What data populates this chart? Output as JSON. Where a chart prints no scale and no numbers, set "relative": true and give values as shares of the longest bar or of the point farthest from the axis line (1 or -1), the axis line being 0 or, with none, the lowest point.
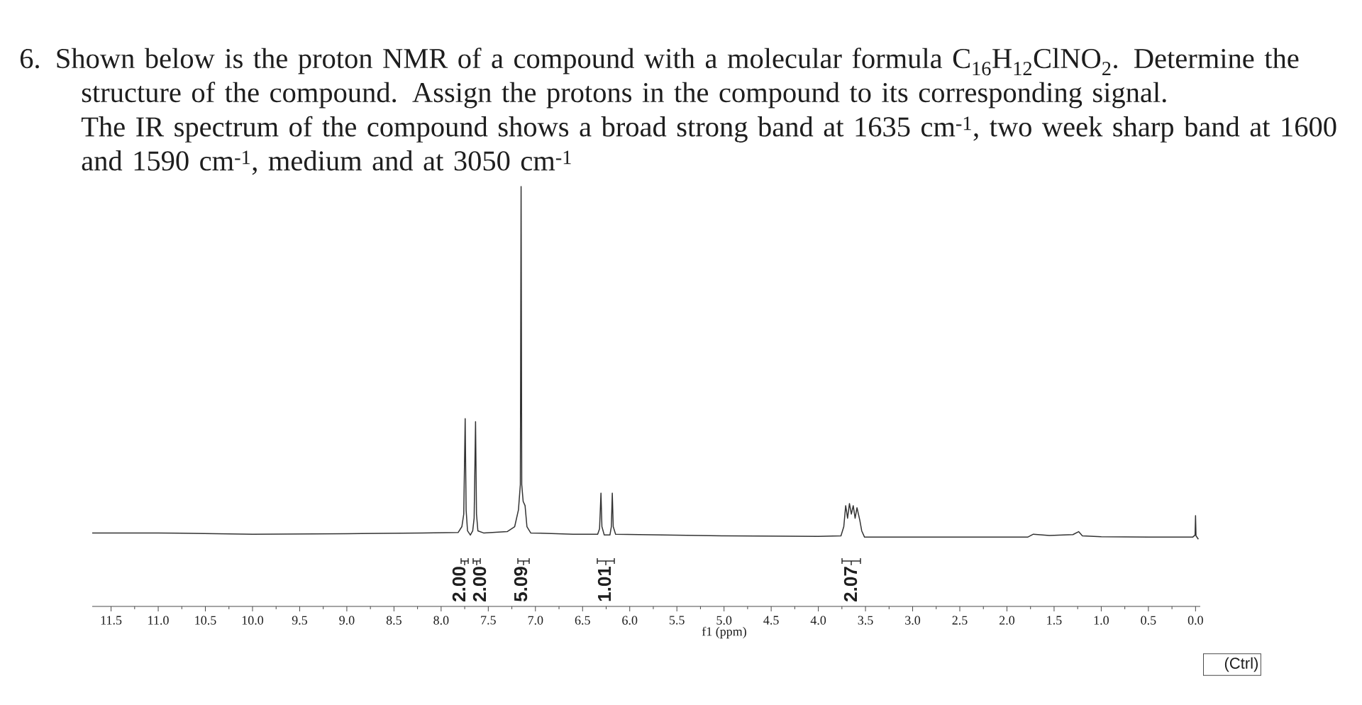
{
  "chart_data": {
    "type": "line",
    "relative": true,
    "title": "6. Shown below is the proton NMR of a compound with a molecular formula C$_{16}$H$_{12}$ClNO$_{2}$. Determine the structure of the compound. Assign the protons in the compound to its corresponding signal.",
    "subtitle": "The IR spectrum of the compound shows a broad strong band at 1635 cm$^{-1}$, two week sharp band at 1600 and 1590 cm$^{-1}$, medium and at 3050 cm$^{-1}$",
    "xlabel": "f1 (ppm)",
    "color": "#333333",
    "xlim": [
      11.7,
      -0.05
    ],
    "xticks": [
      11.5,
      {
        "value": 11,
        "label": "11.0"
      },
      10.5,
      {
        "value": 10,
        "label": "10.0"
      },
      9.5,
      {
        "value": 9,
        "label": "9.0"
      },
      8.5,
      {
        "value": 8,
        "label": "8.0"
      },
      7.5,
      {
        "value": 7,
        "label": "7.0"
      },
      6.5,
      {
        "value": 6,
        "label": "6.0"
      },
      5.5,
      {
        "value": 5,
        "label": "5.0"
      },
      4.5,
      {
        "value": 4,
        "label": "4.0"
      },
      3.5,
      {
        "value": 3,
        "label": "3.0"
      },
      2.5,
      {
        "value": 2,
        "label": "2.0"
      },
      1.5,
      {
        "value": 1,
        "label": "1.0"
      },
      0.5,
      {
        "value": 0,
        "label": "0.0"
      }
    ],
    "x": [
      11.7,
      11.0,
      10.0,
      9.0,
      8.2,
      7.82,
      7.78,
      7.76,
      7.745,
      7.735,
      7.72,
      7.69,
      7.665,
      7.65,
      7.635,
      7.625,
      7.61,
      7.55,
      7.3,
      7.22,
      7.18,
      7.16,
      7.152,
      7.145,
      7.13,
      7.11,
      7.09,
      7.05,
      6.6,
      6.34,
      6.32,
      6.305,
      6.295,
      6.27,
      6.21,
      6.195,
      6.185,
      6.175,
      6.15,
      5.0,
      4.0,
      3.76,
      3.73,
      3.71,
      3.69,
      3.67,
      3.65,
      3.63,
      3.61,
      3.59,
      3.56,
      3.54,
      3.51,
      2.5,
      1.78,
      1.72,
      1.55,
      1.3,
      1.24,
      1.2,
      1.0,
      0.5,
      0.03,
      0.005,
      0.0,
      -0.005,
      -0.03
    ],
    "values": [
      0.175,
      0.175,
      0.172,
      0.173,
      0.175,
      0.176,
      0.19,
      0.22,
      0.447,
      0.23,
      0.18,
      0.17,
      0.18,
      0.21,
      0.44,
      0.22,
      0.18,
      0.175,
      0.178,
      0.19,
      0.23,
      0.29,
      1.0,
      0.29,
      0.25,
      0.24,
      0.19,
      0.175,
      0.172,
      0.172,
      0.185,
      0.27,
      0.19,
      0.17,
      0.17,
      0.19,
      0.27,
      0.19,
      0.172,
      0.168,
      0.167,
      0.168,
      0.19,
      0.24,
      0.21,
      0.245,
      0.22,
      0.24,
      0.21,
      0.235,
      0.205,
      0.18,
      0.165,
      0.165,
      0.165,
      0.172,
      0.169,
      0.171,
      0.178,
      0.168,
      0.166,
      0.165,
      0.165,
      0.17,
      0.216,
      0.168,
      0.16
    ],
    "annotations": [
      "2.00",
      "2.00",
      "5.09",
      "1.01",
      "2.07",
      "(Ctrl)"
    ]
  }
}
